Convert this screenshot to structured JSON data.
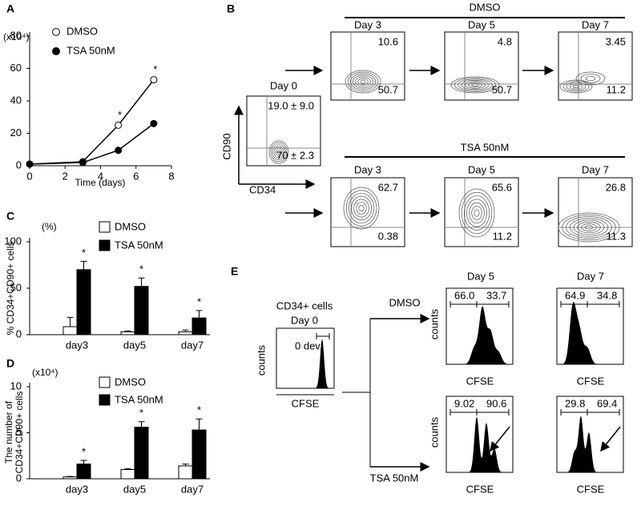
{
  "chart_data": [
    {
      "type": "line",
      "letter": "A",
      "unit": "(x10⁴)",
      "xlabel": "Time (days)",
      "x": [
        0,
        3,
        5,
        7
      ],
      "xlim": [
        0,
        8
      ],
      "xticks": [
        0,
        2,
        4,
        6,
        8
      ],
      "ylim": [
        0,
        80
      ],
      "yticks": [
        0,
        20,
        40,
        60,
        80
      ],
      "series": [
        {
          "name": "DMSO",
          "color": "#000000",
          "fill": "#ffffff",
          "values": [
            1,
            2.5,
            25,
            53
          ],
          "markers": [
            null,
            null,
            "*",
            "*"
          ]
        },
        {
          "name": "TSA 50nM",
          "color": "#000000",
          "fill": "#000000",
          "values": [
            1,
            2,
            9.5,
            26
          ],
          "markers": [
            null,
            null,
            null,
            null
          ]
        }
      ]
    },
    {
      "type": "bar",
      "letter": "C",
      "unit": "(%)",
      "ylabel": [
        "% CD34+CD90+ cells"
      ],
      "categories": [
        "day3",
        "day5",
        "day7"
      ],
      "ylim": [
        0,
        100
      ],
      "yticks": [
        0,
        50,
        100
      ],
      "series": [
        {
          "name": "DMSO",
          "color": "#ffffff",
          "values": [
            8.6,
            3,
            3
          ],
          "errors": [
            10,
            1,
            2
          ],
          "markers": [
            null,
            null,
            null
          ]
        },
        {
          "name": "TSA 50nM",
          "color": "#000000",
          "values": [
            70,
            52,
            18
          ],
          "errors": [
            9,
            9,
            8
          ],
          "markers": [
            "*",
            "*",
            "*"
          ]
        }
      ]
    },
    {
      "type": "bar",
      "letter": "D",
      "unit": "(x10⁴)",
      "ylabel": [
        "The number of",
        "CD34+CD90+ cells"
      ],
      "categories": [
        "day3",
        "day5",
        "day7"
      ],
      "ylim": [
        0,
        10
      ],
      "yticks": [
        0,
        5,
        10
      ],
      "series": [
        {
          "name": "DMSO",
          "color": "#ffffff",
          "values": [
            0.2,
            1.0,
            1.4
          ],
          "errors": [
            0.05,
            0.1,
            0.2
          ],
          "markers": [
            null,
            null,
            null
          ]
        },
        {
          "name": "TSA 50nM",
          "color": "#000000",
          "values": [
            1.6,
            5.6,
            5.3
          ],
          "errors": [
            0.4,
            0.6,
            1.2
          ],
          "markers": [
            "*",
            "*",
            "*"
          ]
        }
      ]
    }
  ],
  "panel_b": {
    "letter": "B",
    "dmso": "DMSO",
    "tsa": "TSA 50nM",
    "day0": {
      "title": "Day 0",
      "upper": "19.0 ± 9.0",
      "lower": "70 ± 2.3",
      "ylabel": "CD90",
      "xlabel": "CD34"
    },
    "dmso_plots": [
      {
        "day": "Day 3",
        "upper": "10.6",
        "lower": "50.7"
      },
      {
        "day": "Day 5",
        "upper": "4.8",
        "lower": "50.7"
      },
      {
        "day": "Day 7",
        "upper": "3.45",
        "lower": "11.2"
      }
    ],
    "tsa_plots": [
      {
        "day": "Day 3",
        "upper": "62.7",
        "lower": "0.38"
      },
      {
        "day": "Day 5",
        "upper": "65.6",
        "lower": "11.2"
      },
      {
        "day": "Day 7",
        "upper": "26.8",
        "lower": "11.3"
      }
    ]
  },
  "panel_e": {
    "letter": "E",
    "start_title": "CD34+ cells",
    "start_day": "Day 0",
    "start_gate": "0 dev.",
    "counts": "counts",
    "cfse": "CFSE",
    "dmso": "DMSO",
    "tsa": "TSA 50nM",
    "day5": "Day 5",
    "day7": "Day 7",
    "dmso_plots": [
      {
        "left": "66.0",
        "right": "33.7"
      },
      {
        "left": "64.9",
        "right": "34.8"
      }
    ],
    "tsa_plots": [
      {
        "left": "9.02",
        "right": "90.6"
      },
      {
        "left": "29.8",
        "right": "69.4"
      }
    ]
  }
}
